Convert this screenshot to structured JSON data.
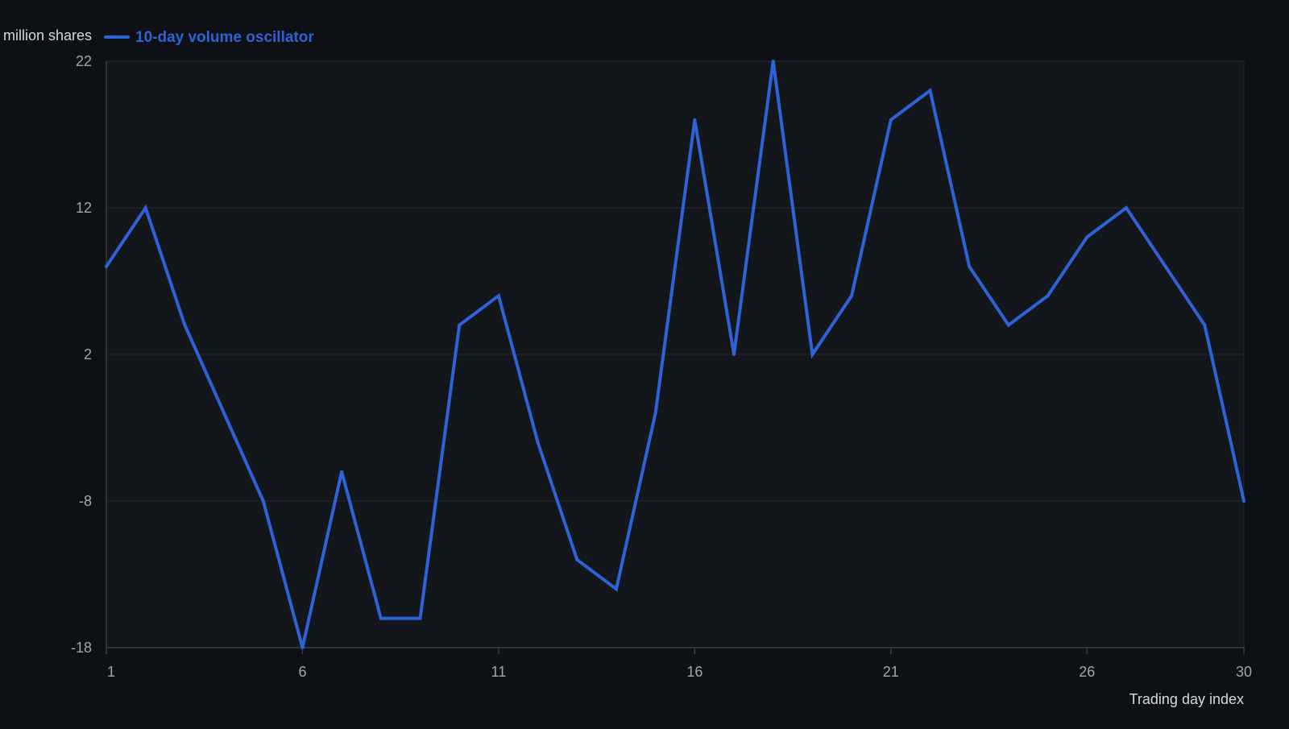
{
  "chart_data": {
    "type": "line",
    "title": "",
    "ylabel": "million shares",
    "xlabel": "Trading day index",
    "x": [
      1,
      2,
      3,
      4,
      5,
      6,
      7,
      8,
      9,
      10,
      11,
      12,
      13,
      14,
      15,
      16,
      17,
      18,
      19,
      20,
      21,
      22,
      23,
      24,
      25,
      26,
      27,
      28,
      29,
      30
    ],
    "series": [
      {
        "name": "10-day volume oscillator",
        "color": "#2f62d6",
        "values": [
          8,
          12,
          4,
          -2,
          -8,
          -18,
          -6,
          -16,
          -16,
          4,
          6,
          -4,
          -12,
          -14,
          -2,
          18,
          2,
          22,
          2,
          6,
          18,
          20,
          8,
          4,
          6,
          10,
          12,
          8,
          4,
          -8
        ]
      }
    ],
    "xlim": [
      1,
      30
    ],
    "ylim": [
      -18,
      22
    ],
    "x_ticks": [
      1,
      6,
      11,
      16,
      21,
      26,
      30
    ],
    "y_ticks": [
      -18,
      -8,
      2,
      12,
      22
    ],
    "grid": true,
    "legend_position": "top-left",
    "colors": {
      "background": "#0d1014",
      "plot_background": "#13171c",
      "grid": "#262a30",
      "axis": "#3a3f46"
    }
  }
}
